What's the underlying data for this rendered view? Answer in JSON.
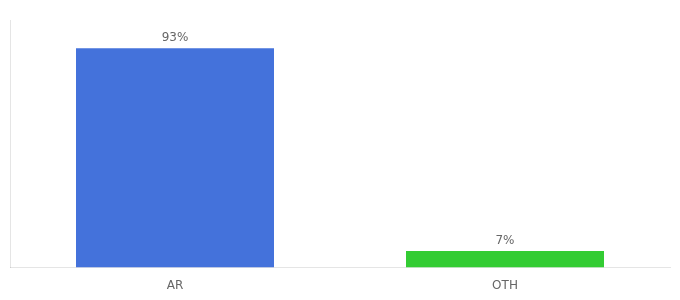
{
  "chart_data": {
    "type": "bar",
    "categories": [
      "AR",
      "OTH"
    ],
    "values": [
      93,
      7
    ],
    "colors": [
      "#4472db",
      "#33cc33"
    ],
    "value_labels": [
      "93%",
      "7%"
    ],
    "data_labels": true,
    "ylim": [
      0,
      105
    ],
    "grid": false,
    "tick_labels": "x"
  }
}
